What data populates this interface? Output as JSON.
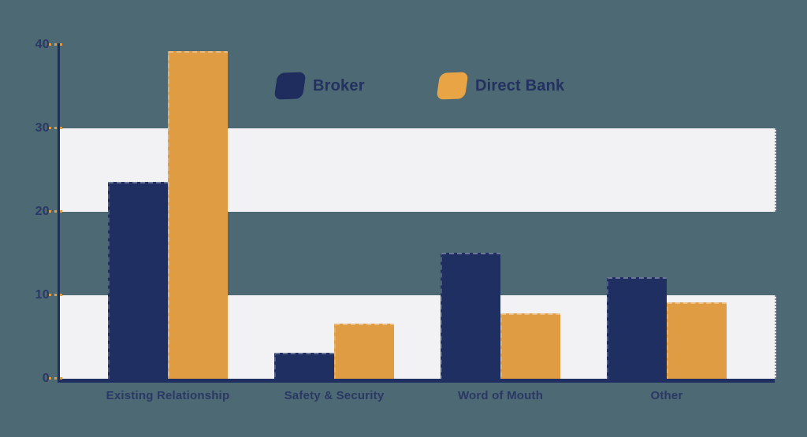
{
  "colors": {
    "background": "#4D6973",
    "band": "#F2F2F4",
    "axis": "#1F2F61",
    "text": "#2A3865",
    "tick_dash": "#DF9C43",
    "broker": "#1F2F61",
    "direct_bank": "#DF9C43",
    "legend_broker_swatch": "#1E2D5E",
    "legend_direct_bank_swatch": "#E9A445"
  },
  "legend": {
    "items": [
      {
        "label": "Broker",
        "color": "#1E2D5E"
      },
      {
        "label": "Direct Bank",
        "color": "#E9A445"
      }
    ]
  },
  "axis": {
    "tick_labels": [
      "0",
      "10",
      "20",
      "30",
      "40"
    ]
  },
  "chart_data": {
    "type": "bar",
    "title": "",
    "xlabel": "",
    "ylabel": "",
    "categories": [
      "Existing Relationship",
      "Safety & Security",
      "Word of Mouth",
      "Other"
    ],
    "series": [
      {
        "name": "Broker",
        "color": "#1F2F61",
        "values": [
          23.8,
          3.3,
          15.3,
          12.4
        ]
      },
      {
        "name": "Direct Bank",
        "color": "#DF9C43",
        "values": [
          39.4,
          6.8,
          8.0,
          9.3
        ]
      }
    ],
    "ylim": [
      0,
      40
    ],
    "yticks": [
      0,
      10,
      20,
      30,
      40
    ],
    "grid": "alternating horizontal light bands covering value ranges 0-10 and 20-30",
    "legend_position": "top-center",
    "background": "solid teal, no vertical gridlines"
  }
}
